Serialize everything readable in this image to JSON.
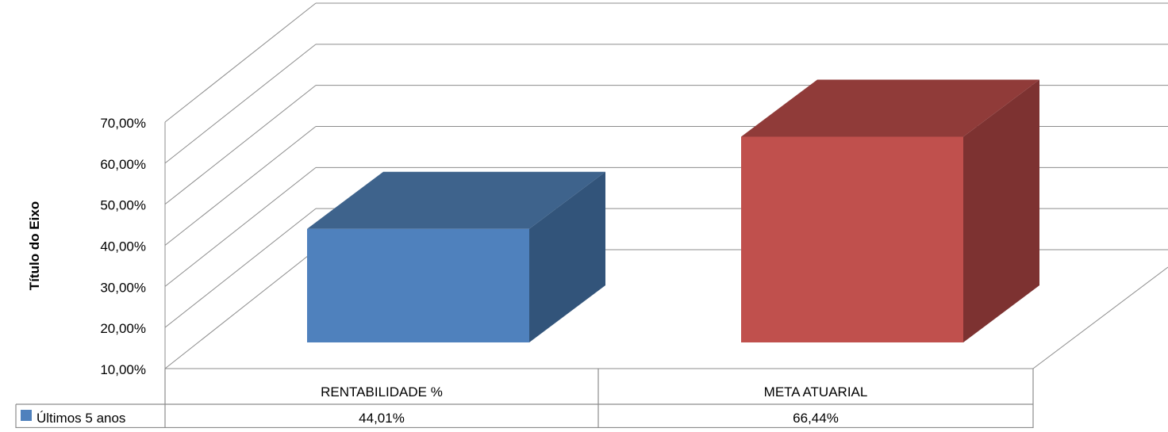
{
  "chart_data": {
    "type": "bar",
    "subtype": "3d-clustered-column",
    "title": "",
    "ylabel": "Título do Eixo",
    "xlabel": "",
    "categories": [
      "RENTABILIDADE %",
      "META ATUARIAL"
    ],
    "series": [
      {
        "name": "Últimos 5 anos",
        "values": [
          44.01,
          66.44
        ],
        "value_labels": [
          "44,01%",
          "66,44%"
        ]
      }
    ],
    "ylim": [
      10,
      70
    ],
    "y_ticks": [
      10,
      20,
      30,
      40,
      50,
      60,
      70
    ],
    "y_tick_labels": [
      "10,00%",
      "20,00%",
      "30,00%",
      "40,00%",
      "50,00%",
      "60,00%",
      "70,00%"
    ],
    "grid": true,
    "data_table": true,
    "legend_position": "in-data-table",
    "colors": {
      "bars": [
        "#4f81bd",
        "#c0504d"
      ],
      "bar_tops": [
        "#3e638c",
        "#903b39"
      ],
      "bar_sides": [
        "#32547a",
        "#7d3231"
      ],
      "legend_key": "#4f81bd",
      "gridline": "#8c8c8c",
      "table_border": "#8c8c8c"
    }
  }
}
